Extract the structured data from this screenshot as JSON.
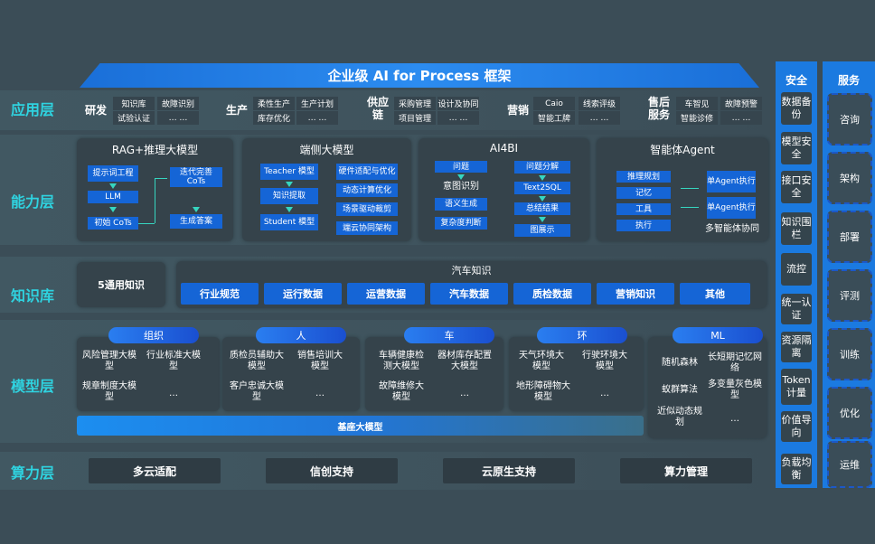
{
  "title": "企业级 AI for Process 框架",
  "layers": {
    "app": "应用层",
    "capability": "能力层",
    "knowledge": "知识库",
    "model": "模型层",
    "compute": "算力层"
  },
  "app_groups": [
    {
      "label": "研发",
      "items": [
        "知识库",
        "试验认证",
        "故障识别",
        "… …"
      ]
    },
    {
      "label": "生产",
      "items": [
        "柔性生产",
        "库存优化",
        "生产计划",
        "… …"
      ]
    },
    {
      "label": "供应链",
      "items": [
        "采购管理",
        "项目管理",
        "设计及协同",
        "… …"
      ]
    },
    {
      "label": "营销",
      "items": [
        "Caio",
        "智能工牌",
        "线索评级",
        "… …"
      ]
    },
    {
      "label": "售后服务",
      "items": [
        "车智见",
        "智能诊修",
        "故障预警",
        "… …"
      ]
    }
  ],
  "capability": {
    "rag": {
      "title": "RAG+推理大模型",
      "items": [
        "提示词工程",
        "LLM",
        "初始 CoTs",
        "迭代完善 CoTs",
        "生成答案"
      ]
    },
    "edge": {
      "title": "端侧大模型",
      "items": [
        "Teacher 模型",
        "知识提取",
        "Student 模型",
        "硬件适配与优化",
        "动态计算优化",
        "场景驱动裁剪",
        "端云协同架构"
      ]
    },
    "ai4bi": {
      "title": "AI4BI",
      "items": [
        "问题",
        "意图识别",
        "语义生成",
        "复杂度判断",
        "问题分解",
        "Text2SQL",
        "总结结果",
        "图展示"
      ]
    },
    "agent": {
      "title": "智能体Agent",
      "items": [
        "推理规划",
        "记忆",
        "工具",
        "执行",
        "单Agent执行",
        "单Agent执行",
        "多智能体协同"
      ]
    }
  },
  "knowledge": {
    "general": "5通用知识",
    "auto_title": "汽车知识",
    "items": [
      "行业规范",
      "运行数据",
      "运营数据",
      "汽车数据",
      "质检数据",
      "营销知识",
      "其他"
    ]
  },
  "model": {
    "groups": [
      {
        "label": "组织",
        "items": [
          "风险管理大模型",
          "行业标准大模型",
          "规章制度大模型",
          "…"
        ]
      },
      {
        "label": "人",
        "items": [
          "质检员辅助大模型",
          "销售培训大模型",
          "客户忠诚大模型",
          "…"
        ]
      },
      {
        "label": "车",
        "items": [
          "车辆健康检测大模型",
          "器材库存配置大模型",
          "故障维修大模型",
          "…"
        ]
      },
      {
        "label": "环",
        "items": [
          "天气环境大模型",
          "行驶环境大模型",
          "地形障碍物大模型",
          "…"
        ]
      },
      {
        "label": "ML",
        "items": [
          "随机森林",
          "长短期记忆网络",
          "蚁群算法",
          "多变量灰色模型",
          "近似动态规划",
          "…"
        ]
      }
    ],
    "base": "基座大模型"
  },
  "compute": [
    "多云适配",
    "信创支持",
    "云原生支持",
    "算力管理"
  ],
  "security": {
    "title": "安全",
    "items": [
      "数据备份",
      "模型安全",
      "接口安全",
      "知识围栏",
      "流控",
      "统一认证",
      "资源隔离",
      "Token计量",
      "价值导向",
      "负载均衡"
    ]
  },
  "service": {
    "title": "服务",
    "items": [
      "咨询",
      "架构",
      "部署",
      "评测",
      "训练",
      "优化",
      "运维"
    ]
  },
  "colors": {
    "background": "#3b4d57",
    "accent_blue": "#1565d6",
    "label_cyan": "#2fd3e0",
    "arrow": "#36d6c0"
  }
}
